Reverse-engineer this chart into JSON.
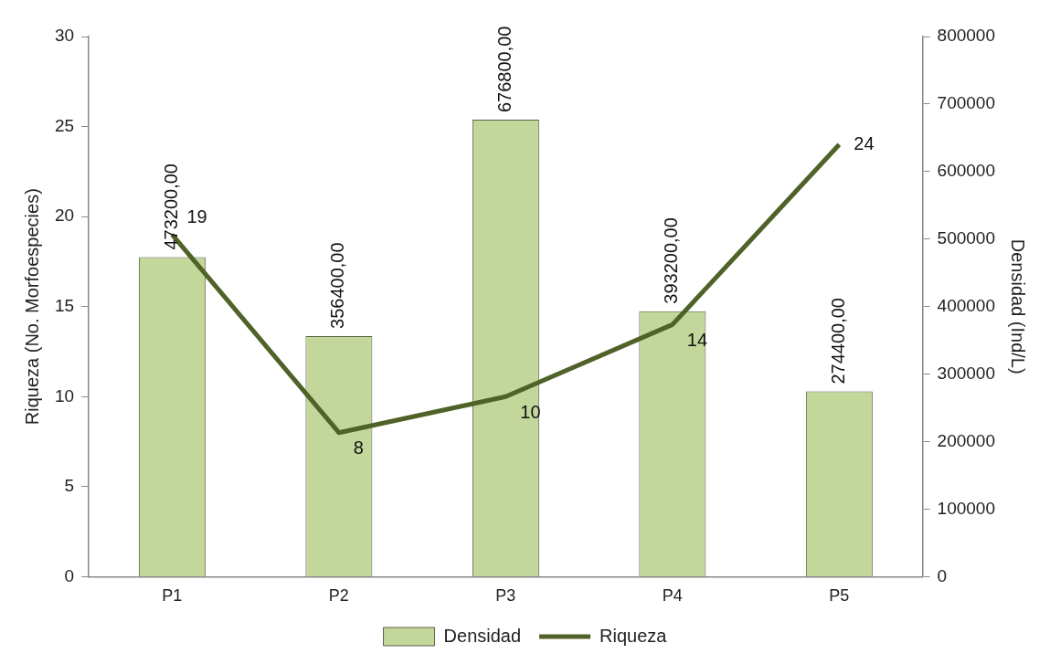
{
  "chart_data": {
    "type": "bar",
    "categories": [
      "P1",
      "P2",
      "P3",
      "P4",
      "P5"
    ],
    "ylabel": "Riqueza (No. Morfoespecies)",
    "y2label": "Densidad (Ind/L)",
    "ylim": [
      0,
      30
    ],
    "yticks": [
      0,
      5,
      10,
      15,
      20,
      25,
      30
    ],
    "y2lim": [
      0,
      800000
    ],
    "y2ticks": [
      0,
      100000,
      200000,
      300000,
      400000,
      500000,
      600000,
      700000,
      800000
    ],
    "legend": "bottom",
    "marker": "none",
    "series": [
      {
        "name": "Densidad",
        "axis": "y2",
        "color": "#c4d79b",
        "values": [
          473200,
          356400,
          676800,
          393200,
          274400
        ],
        "value_labels": [
          "473200,00",
          "356400,00",
          "676800,00",
          "393200,00",
          "274400,00"
        ]
      },
      {
        "name": "Riqueza",
        "type": "line",
        "axis": "y",
        "color": "#4f6228",
        "values": [
          19,
          8,
          10,
          14,
          24
        ],
        "value_labels": [
          "19",
          "8",
          "10",
          "14",
          "24"
        ]
      }
    ]
  }
}
